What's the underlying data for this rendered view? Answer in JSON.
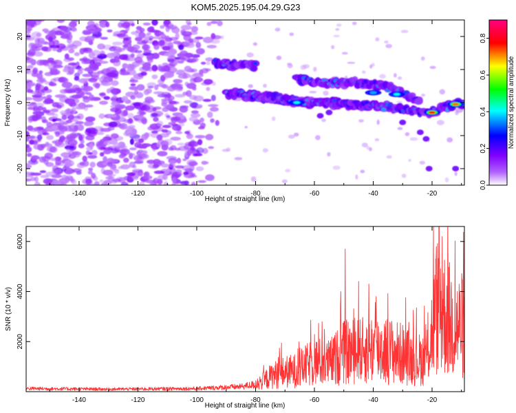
{
  "title": "KOM5.2025.195.04.29.G23",
  "chart_data": [
    {
      "type": "heatmap",
      "xlabel": "Height of straight line (km)",
      "ylabel": "Frequency (Hz)",
      "xlim": [
        -158,
        -9
      ],
      "ylim": [
        -25,
        25
      ],
      "xticks": [
        -140,
        -120,
        -100,
        -80,
        -60,
        -40,
        -20
      ],
      "yticks": [
        -20,
        -10,
        0,
        10,
        20
      ],
      "colorbar": {
        "label": "Normalized spectral amplitude",
        "ticks": [
          "0.0",
          "0.2",
          "0.4",
          "0.6",
          "0.8"
        ],
        "tick_values": [
          0,
          0.2,
          0.4,
          0.6,
          0.8
        ],
        "range": [
          0,
          0.9
        ],
        "colormap": [
          "#ffffff",
          "#8000ff",
          "#0000ff",
          "#00ffff",
          "#00ff00",
          "#ffff00",
          "#ff0000",
          "#ff0080"
        ]
      },
      "ridges": [
        {
          "points": [
            [
              -94,
              12
            ],
            [
              -88,
              11.5
            ],
            [
              -80,
              11
            ]
          ]
        },
        {
          "points": [
            [
              -90,
              3
            ],
            [
              -80,
              2
            ],
            [
              -72,
              1
            ],
            [
              -62,
              0
            ],
            [
              -52,
              0
            ]
          ]
        },
        {
          "points": [
            [
              -84,
              2
            ],
            [
              -75,
              1.5
            ],
            [
              -66,
              0.5
            ],
            [
              -58,
              0
            ],
            [
              -50,
              -0.5
            ],
            [
              -42,
              -1
            ],
            [
              -34,
              -1.5
            ],
            [
              -26,
              -2.5
            ],
            [
              -20,
              -3
            ],
            [
              -14,
              -1
            ],
            [
              -9,
              0
            ]
          ]
        },
        {
          "points": [
            [
              -66,
              7
            ],
            [
              -55,
              6
            ],
            [
              -46,
              6
            ],
            [
              -40,
              5.5
            ],
            [
              -34,
              4.5
            ],
            [
              -28,
              2
            ],
            [
              -24,
              0
            ]
          ]
        }
      ],
      "peaks": [
        {
          "x": -20,
          "y": -3,
          "amplitude": 0.85
        },
        {
          "x": -12,
          "y": -0.5,
          "amplitude": 0.8
        },
        {
          "x": -66,
          "y": 0,
          "amplitude": 0.45
        },
        {
          "x": -32,
          "y": 2.5,
          "amplitude": 0.45
        },
        {
          "x": -40,
          "y": 3,
          "amplitude": 0.4
        }
      ]
    },
    {
      "type": "line",
      "xlabel": "Height of straight line (km)",
      "ylabel": "SNR (10 * v/v)",
      "xlim": [
        -158,
        -9
      ],
      "ylim": [
        0,
        6600
      ],
      "xticks": [
        -140,
        -120,
        -100,
        -80,
        -60,
        -40,
        -20
      ],
      "yticks": [
        2000,
        4000,
        6000
      ],
      "color": "#ff3333",
      "envelope": [
        [
          -158,
          250
        ],
        [
          -130,
          200
        ],
        [
          -100,
          250
        ],
        [
          -85,
          400
        ],
        [
          -78,
          650
        ],
        [
          -74,
          1100
        ],
        [
          -70,
          1300
        ],
        [
          -66,
          1400
        ],
        [
          -60,
          2000
        ],
        [
          -55,
          1900
        ],
        [
          -50,
          2600
        ],
        [
          -44,
          2700
        ],
        [
          -40,
          2900
        ],
        [
          -36,
          2800
        ],
        [
          -30,
          2500
        ],
        [
          -26,
          2100
        ],
        [
          -22,
          2200
        ],
        [
          -20,
          4000
        ],
        [
          -18,
          5800
        ],
        [
          -15,
          5000
        ],
        [
          -12,
          4300
        ],
        [
          -9,
          4400
        ]
      ],
      "spikes": [
        {
          "x": -49.5,
          "y": 5700
        },
        {
          "x": -51,
          "y": 4000
        },
        {
          "x": -45,
          "y": 4400
        },
        {
          "x": -41.5,
          "y": 4300
        },
        {
          "x": -39,
          "y": 3800
        },
        {
          "x": -19.5,
          "y": 6600
        },
        {
          "x": -18.5,
          "y": 5800
        },
        {
          "x": -16.5,
          "y": 6200
        }
      ]
    }
  ]
}
